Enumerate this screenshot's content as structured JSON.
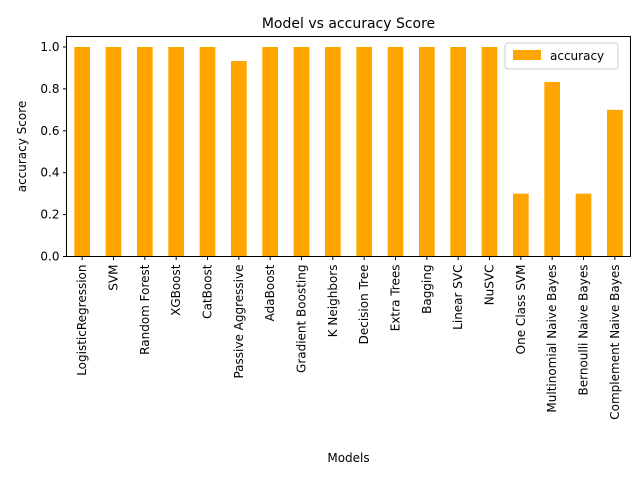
{
  "chart_data": {
    "type": "bar",
    "title": "Model vs accuracy Score",
    "xlabel": "Models",
    "ylabel": "accuracy Score",
    "categories": [
      "LogisticRegression",
      "SVM",
      "Random Forest",
      "XGBoost",
      "CatBoost",
      "Passive Aggressive",
      "AdaBoost",
      "Gradient Boosting",
      "K Neighbors",
      "Decision Tree",
      "Extra Trees",
      "Bagging",
      "Linear SVC",
      "NuSVC",
      "One Class SVM",
      "Multinomial Naive Bayes",
      "Bernoulli Naive Bayes",
      "Complement Naive Bayes"
    ],
    "series": [
      {
        "name": "accuracy",
        "color": "#ffa500",
        "values": [
          1.0,
          1.0,
          1.0,
          1.0,
          1.0,
          0.933,
          1.0,
          1.0,
          1.0,
          1.0,
          1.0,
          1.0,
          1.0,
          1.0,
          0.3,
          0.833,
          0.3,
          0.7
        ]
      }
    ],
    "ylim": [
      0,
      1.05
    ],
    "yticks": [
      0.0,
      0.2,
      0.4,
      0.6,
      0.8,
      1.0
    ],
    "ytick_labels": [
      "0.0",
      "0.2",
      "0.4",
      "0.6",
      "0.8",
      "1.0"
    ],
    "grid": false,
    "legend_position": "top-right"
  }
}
